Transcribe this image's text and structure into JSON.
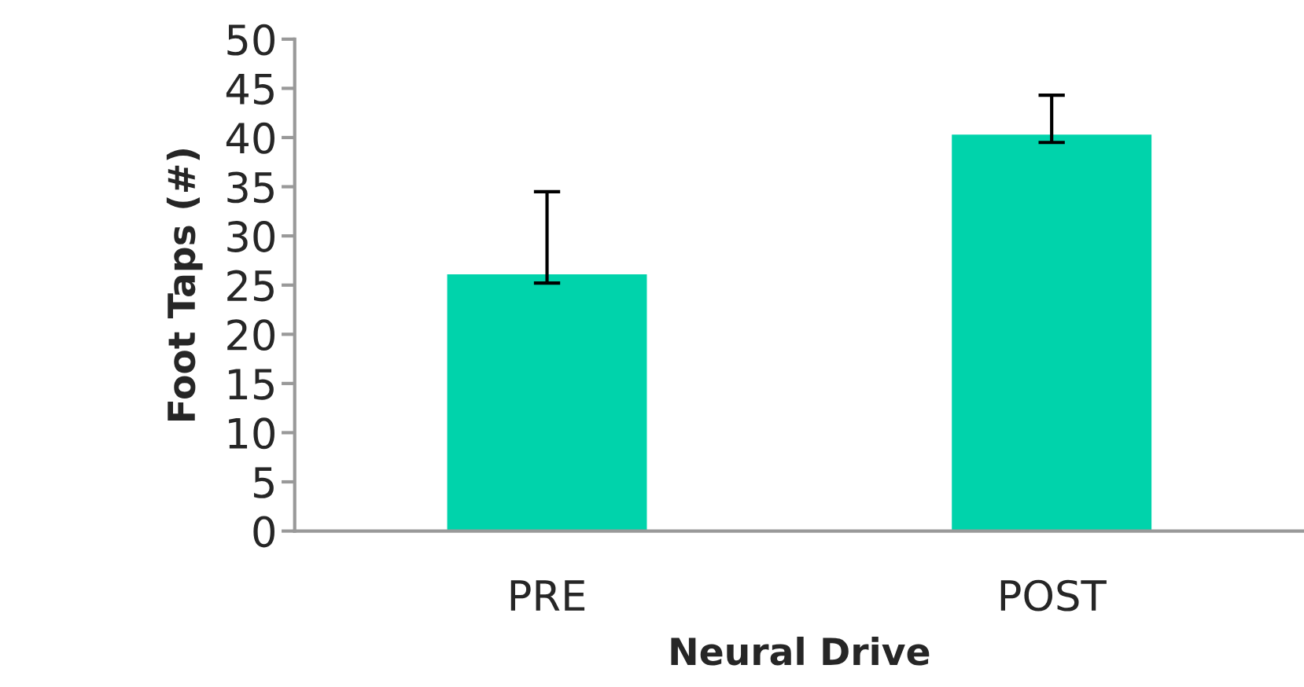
{
  "chart_data": {
    "type": "bar",
    "xlabel": "Neural Drive",
    "ylabel": "Foot Taps (#)",
    "categories": [
      "PRE",
      "POST"
    ],
    "values": [
      26.2,
      40.4
    ],
    "errors": [
      [
        25.2,
        34.5
      ],
      [
        39.5,
        44.3
      ]
    ],
    "color": "#00d3ab",
    "ylim": [
      0,
      50
    ],
    "yticks": [
      0,
      5,
      10,
      15,
      20,
      25,
      30,
      35,
      40,
      45,
      50
    ],
    "grid": false,
    "legend": false
  }
}
